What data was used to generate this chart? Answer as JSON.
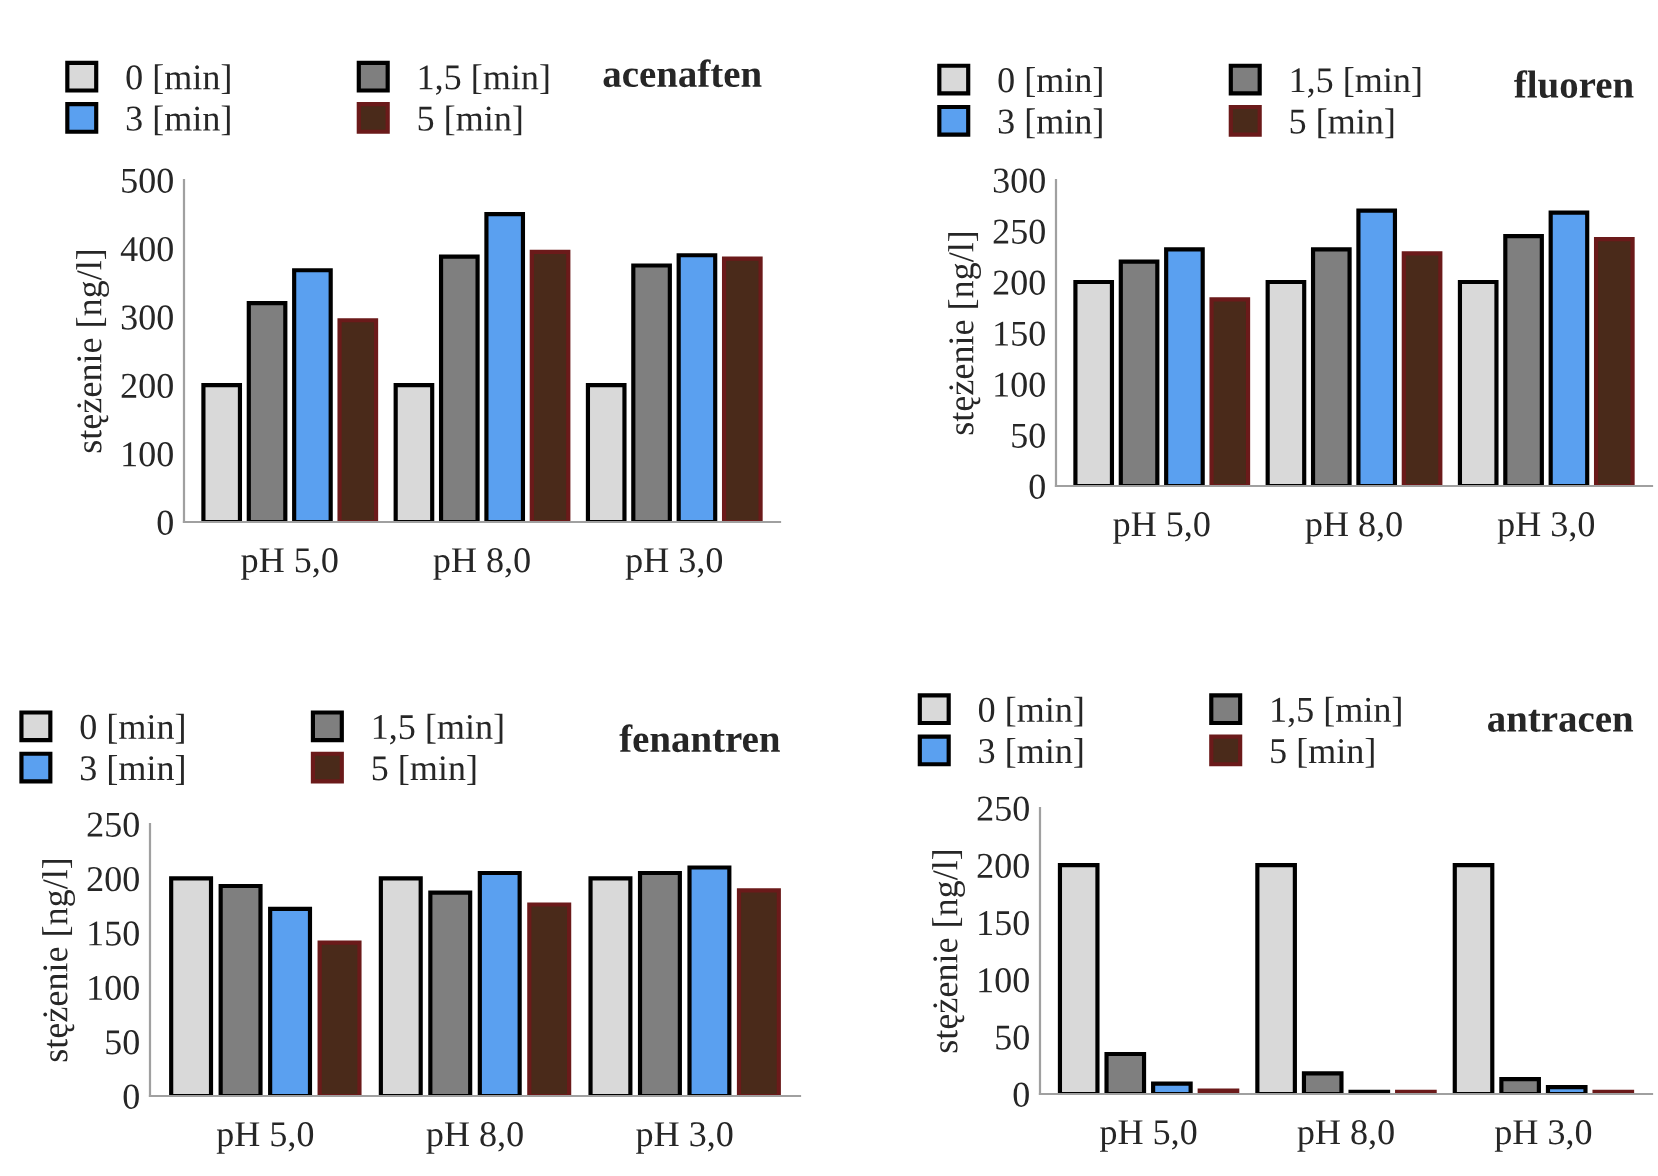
{
  "chart_data": [
    {
      "type": "bar",
      "title": "acenaften",
      "ylabel": "stężenie [ng/l]",
      "categories": [
        "pH 5,0",
        "pH 8,0",
        "pH 3,0"
      ],
      "ylim": [
        0,
        500
      ],
      "yticks": [
        0,
        100,
        200,
        300,
        400,
        500
      ],
      "grid": false,
      "legend": "top left",
      "series": [
        {
          "name": "0 [min]",
          "color": "#d9d9d9",
          "values": [
            200,
            200,
            200
          ]
        },
        {
          "name": "1,5 [min]",
          "color": "#7f7f7f",
          "values": [
            320,
            388,
            375
          ]
        },
        {
          "name": "3 [min]",
          "color": "#5aa0f0",
          "values": [
            368,
            450,
            390
          ]
        },
        {
          "name": "5 [min]",
          "color": "#4a2a1a",
          "values": [
            295,
            395,
            385
          ]
        }
      ]
    },
    {
      "type": "bar",
      "title": "fluoren",
      "ylabel": "stężenie [ng/l]",
      "categories": [
        "pH 5,0",
        "pH 8,0",
        "pH 3,0"
      ],
      "ylim": [
        0,
        300
      ],
      "yticks": [
        0,
        50,
        100,
        150,
        200,
        250,
        300
      ],
      "grid": false,
      "legend": "top left",
      "series": [
        {
          "name": "0 [min]",
          "color": "#d9d9d9",
          "values": [
            200,
            200,
            200
          ]
        },
        {
          "name": "1,5 [min]",
          "color": "#7f7f7f",
          "values": [
            220,
            232,
            245
          ]
        },
        {
          "name": "3 [min]",
          "color": "#5aa0f0",
          "values": [
            232,
            270,
            268
          ]
        },
        {
          "name": "5 [min]",
          "color": "#4a2a1a",
          "values": [
            183,
            228,
            242
          ]
        }
      ]
    },
    {
      "type": "bar",
      "title": "fenantren",
      "ylabel": "stężenie [ng/l]",
      "categories": [
        "pH 5,0",
        "pH 8,0",
        "pH 3,0"
      ],
      "ylim": [
        0,
        250
      ],
      "yticks": [
        0,
        50,
        100,
        150,
        200,
        250
      ],
      "grid": false,
      "legend": "top left",
      "series": [
        {
          "name": "0 [min]",
          "color": "#d9d9d9",
          "values": [
            200,
            200,
            200
          ]
        },
        {
          "name": "1,5 [min]",
          "color": "#7f7f7f",
          "values": [
            193,
            187,
            205
          ]
        },
        {
          "name": "3 [min]",
          "color": "#5aa0f0",
          "values": [
            172,
            205,
            210
          ]
        },
        {
          "name": "5 [min]",
          "color": "#4a2a1a",
          "values": [
            141,
            176,
            189
          ]
        }
      ]
    },
    {
      "type": "bar",
      "title": "antracen",
      "ylabel": "stężenie [ng/l]",
      "categories": [
        "pH 5,0",
        "pH 8,0",
        "pH 3,0"
      ],
      "ylim": [
        0,
        250
      ],
      "yticks": [
        0,
        50,
        100,
        150,
        200,
        250
      ],
      "grid": false,
      "legend": "top left",
      "series": [
        {
          "name": "0 [min]",
          "color": "#d9d9d9",
          "values": [
            200,
            200,
            200
          ]
        },
        {
          "name": "1,5 [min]",
          "color": "#7f7f7f",
          "values": [
            35,
            18,
            13
          ]
        },
        {
          "name": "3 [min]",
          "color": "#5aa0f0",
          "values": [
            9,
            2,
            6
          ]
        },
        {
          "name": "5 [min]",
          "color": "#4a2a1a",
          "values": [
            3,
            2,
            2
          ]
        }
      ]
    }
  ]
}
